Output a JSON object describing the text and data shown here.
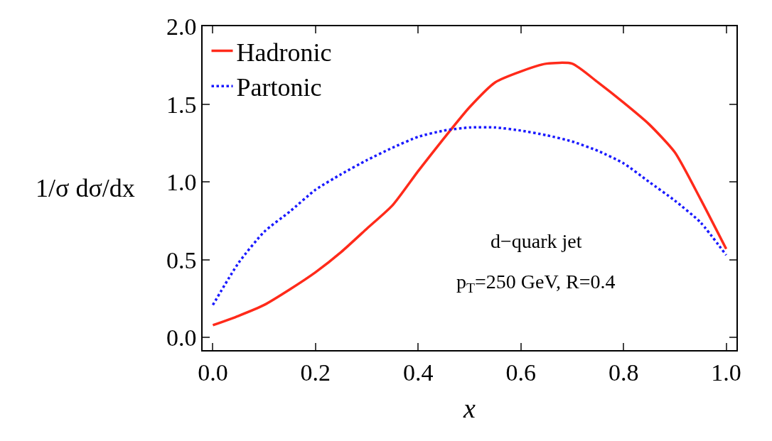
{
  "chart_data": {
    "type": "line",
    "xlabel": "x",
    "ylabel": "1/σ dσ/dx",
    "annotations": [
      "d−quark jet",
      "p$_{T}$=250 GeV, R=0.4"
    ],
    "x": [
      0,
      0.05,
      0.1,
      0.15,
      0.2,
      0.25,
      0.3,
      0.35,
      0.4,
      0.45,
      0.5,
      0.55,
      0.6,
      0.65,
      0.7,
      0.75,
      0.8,
      0.85,
      0.9,
      0.95,
      1.0
    ],
    "series": [
      {
        "name": "Hadronic",
        "color": "#ff2a1a",
        "line_style": "solid",
        "values": [
          0.08,
          0.14,
          0.21,
          0.31,
          0.42,
          0.55,
          0.7,
          0.85,
          1.07,
          1.28,
          1.48,
          1.64,
          1.71,
          1.76,
          1.76,
          1.64,
          1.51,
          1.37,
          1.19,
          0.89,
          0.57
        ]
      },
      {
        "name": "Partonic",
        "color": "#1a1aff",
        "line_style": "dotted",
        "values": [
          0.21,
          0.48,
          0.68,
          0.81,
          0.95,
          1.05,
          1.14,
          1.22,
          1.29,
          1.33,
          1.35,
          1.35,
          1.33,
          1.3,
          1.26,
          1.2,
          1.12,
          1.0,
          0.88,
          0.74,
          0.53
        ]
      }
    ],
    "xlim": [
      -0.02,
      1.02
    ],
    "ylim": [
      -0.08,
      2.0
    ],
    "xticks": [
      {
        "value": 0,
        "label": "0.0"
      },
      {
        "value": 0.2,
        "label": "0.2"
      },
      {
        "value": 0.4,
        "label": "0.4"
      },
      {
        "value": 0.6,
        "label": "0.6"
      },
      {
        "value": 0.8,
        "label": "0.8"
      },
      {
        "value": 1,
        "label": "1.0"
      }
    ],
    "yticks": [
      {
        "value": 0,
        "label": "0.0"
      },
      {
        "value": 0.5,
        "label": "0.5"
      },
      {
        "value": 1,
        "label": "1.0"
      },
      {
        "value": 1.5,
        "label": "1.5"
      },
      {
        "value": 2,
        "label": "2.0"
      }
    ],
    "legend": "top left",
    "grid": false
  }
}
